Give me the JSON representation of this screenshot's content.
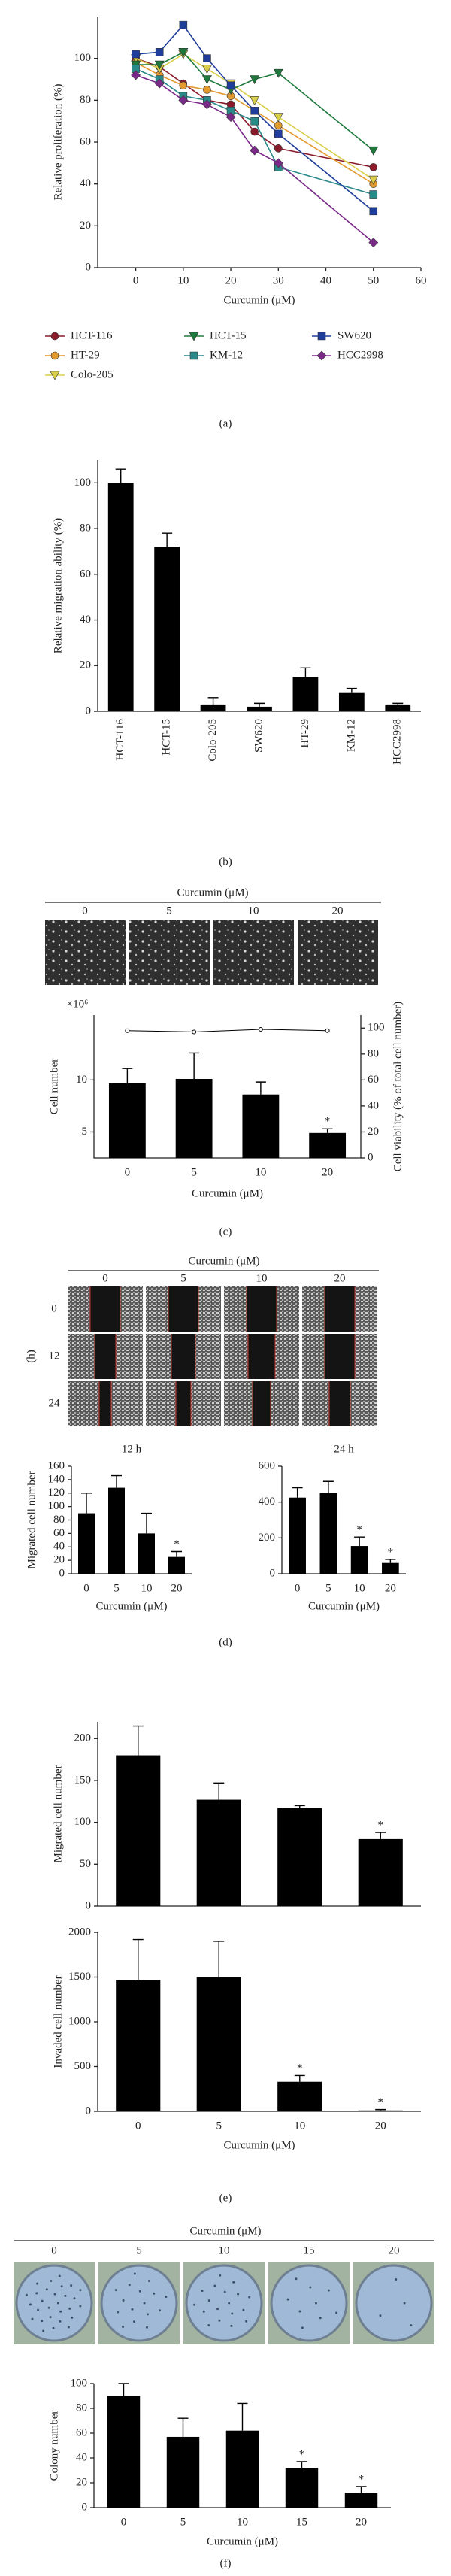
{
  "panel_labels": [
    "(a)",
    "(b)",
    "(c)",
    "(d)",
    "(e)",
    "(f)"
  ],
  "images_c": {
    "title": "Curcumin (μM)",
    "columns": [
      "0",
      "5",
      "10",
      "20"
    ]
  },
  "images_d": {
    "title": "Curcumin (μM)",
    "columns": [
      "0",
      "5",
      "10",
      "20"
    ],
    "rows": [
      "0",
      "12",
      "24"
    ],
    "row_unit": "(h)"
  },
  "images_f": {
    "title": "Curcumin (μM)",
    "columns": [
      "0",
      "5",
      "10",
      "15",
      "20"
    ]
  },
  "chart_data": [
    {
      "type": "line",
      "xlabel": "Curcumin (μM)",
      "ylabel": "Relative proliferation (%)",
      "x": [
        0,
        5,
        10,
        15,
        20,
        25,
        30,
        50
      ],
      "series": [
        {
          "name": "HCT-116",
          "color": "#8b1a2a",
          "marker": "circle",
          "values": [
            100,
            96,
            88,
            80,
            78,
            65,
            57,
            48
          ]
        },
        {
          "name": "HT-29",
          "color": "#e39a2d",
          "marker": "circle",
          "values": [
            98,
            92,
            87,
            85,
            82,
            75,
            68,
            40
          ]
        },
        {
          "name": "Colo-205",
          "color": "#d9cf4a",
          "marker": "triangle-down",
          "values": [
            100,
            95,
            102,
            95,
            88,
            80,
            72,
            42
          ]
        },
        {
          "name": "HCT-15",
          "color": "#1e7a3c",
          "marker": "triangle-down",
          "values": [
            97,
            97,
            103,
            90,
            85,
            90,
            93,
            56
          ]
        },
        {
          "name": "KM-12",
          "color": "#2a8a8a",
          "marker": "square",
          "values": [
            95,
            90,
            82,
            80,
            75,
            70,
            48,
            35
          ]
        },
        {
          "name": "SW620",
          "color": "#1f3d9a",
          "marker": "square",
          "values": [
            102,
            103,
            116,
            100,
            87,
            75,
            64,
            27
          ]
        },
        {
          "name": "HCC2998",
          "color": "#7b2a8a",
          "marker": "diamond",
          "values": [
            92,
            88,
            80,
            78,
            72,
            56,
            50,
            12
          ]
        }
      ],
      "xlim": [
        -8,
        60
      ],
      "xticks": [
        0,
        10,
        20,
        30,
        40,
        50,
        60
      ],
      "ylim": [
        0,
        120
      ],
      "yticks": [
        0,
        20,
        40,
        60,
        80,
        100
      ]
    },
    {
      "type": "bar",
      "ylabel": "Relative migration ability (%)",
      "rotate_labels": true,
      "color": "#000000",
      "categories": [
        "HCT-116",
        "HCT-15",
        "Colo-205",
        "SW620",
        "HT-29",
        "KM-12",
        "HCC2998"
      ],
      "values": [
        100,
        72,
        3,
        2,
        15,
        8,
        3
      ],
      "errors": [
        6,
        6,
        3,
        1.5,
        4,
        2,
        0.5
      ],
      "ylim": [
        0,
        110
      ],
      "yticks": [
        0,
        20,
        40,
        60,
        80,
        100
      ]
    },
    {
      "type": "bar",
      "ylabel": "Cell number",
      "y_multiplier": "×10⁶",
      "y2label": "Cell viability (% of total cell number)",
      "xlabel": "Curcumin (μM)",
      "color": "#000000",
      "categories": [
        "0",
        "5",
        "10",
        "20"
      ],
      "values": [
        9.7,
        10.1,
        8.6,
        4.9
      ],
      "errors": [
        1.4,
        2.5,
        1.2,
        0.4
      ],
      "significance": [
        null,
        null,
        null,
        "*"
      ],
      "ylim": [
        2.5,
        16.25
      ],
      "yticks": [
        5,
        10
      ],
      "y2lim": [
        0,
        110
      ],
      "y2ticks": [
        0,
        20,
        40,
        60,
        80,
        100
      ],
      "series": [
        {
          "axis": "y2",
          "type": "line",
          "color": "#000000",
          "values": [
            98,
            97,
            99,
            98
          ]
        }
      ]
    },
    {
      "type": "bar",
      "title": "12 h",
      "ylabel": "Migrated cell number",
      "xlabel": "Curcumin (μM)",
      "color": "#000000",
      "categories": [
        "0",
        "5",
        "10",
        "20"
      ],
      "values": [
        90,
        128,
        60,
        25
      ],
      "errors": [
        30,
        18,
        30,
        8
      ],
      "significance": [
        null,
        null,
        null,
        "*"
      ],
      "ylim": [
        0,
        160
      ],
      "yticks": [
        0,
        20,
        40,
        60,
        80,
        100,
        120,
        140,
        160
      ]
    },
    {
      "type": "bar",
      "title": "24 h",
      "xlabel": "Curcumin (μM)",
      "color": "#000000",
      "categories": [
        "0",
        "5",
        "10",
        "20"
      ],
      "values": [
        425,
        450,
        155,
        60
      ],
      "errors": [
        55,
        65,
        50,
        20
      ],
      "significance": [
        null,
        null,
        "*",
        "*"
      ],
      "ylim": [
        0,
        600
      ],
      "yticks": [
        0,
        200,
        400,
        600
      ]
    },
    {
      "type": "bar",
      "ylabel": "Migrated cell number",
      "color": "#000000",
      "values": [
        180,
        127,
        117,
        80
      ],
      "errors": [
        35,
        20,
        3,
        8
      ],
      "significance": [
        null,
        null,
        null,
        "*"
      ],
      "ylim": [
        0,
        220
      ],
      "yticks": [
        0,
        50,
        100,
        150,
        200
      ]
    },
    {
      "type": "bar",
      "ylabel": "Invaded cell number",
      "xlabel": "Curcumin (μM)",
      "color": "#000000",
      "categories": [
        "0",
        "5",
        "10",
        "20"
      ],
      "values": [
        1470,
        1500,
        330,
        10
      ],
      "errors": [
        450,
        400,
        70,
        10
      ],
      "significance": [
        null,
        null,
        "*",
        "*"
      ],
      "ylim": [
        0,
        2000
      ],
      "yticks": [
        0,
        500,
        1000,
        1500,
        2000
      ]
    },
    {
      "type": "bar",
      "ylabel": "Colony number",
      "xlabel": "Curcumin (μM)",
      "color": "#000000",
      "categories": [
        "0",
        "5",
        "10",
        "15",
        "20"
      ],
      "values": [
        90,
        57,
        62,
        32,
        12
      ],
      "errors": [
        10,
        15,
        22,
        5,
        5
      ],
      "significance": [
        null,
        null,
        null,
        "*",
        "*"
      ],
      "ylim": [
        0,
        100
      ],
      "yticks": [
        0,
        20,
        40,
        60,
        80,
        100
      ]
    }
  ]
}
